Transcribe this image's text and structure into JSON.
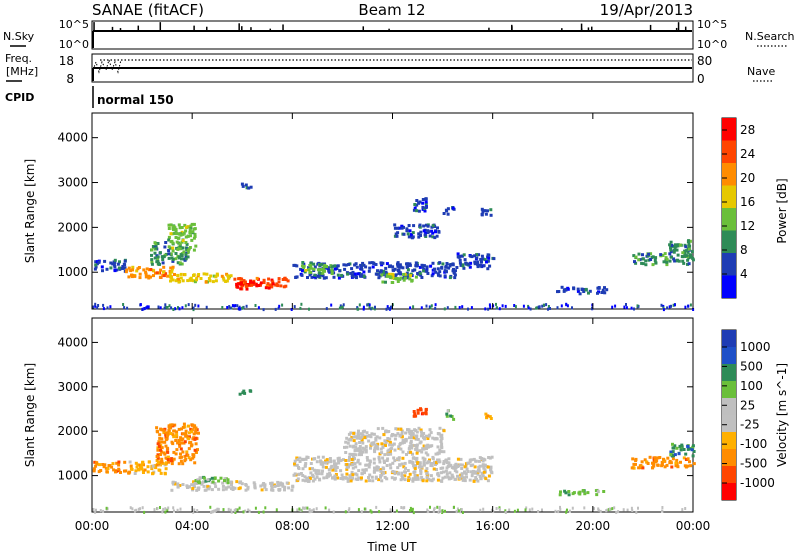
{
  "header": {
    "station": "SANAE (fitACF)",
    "beam": "Beam 12",
    "date": "19/Apr/2013"
  },
  "top_panels": {
    "nsky_label": "N.Sky",
    "nsky_ticks": [
      "10^5",
      "10^0"
    ],
    "nsearch_label": "N.Search",
    "nsearch_ticks": [
      "10^5",
      "10^0"
    ],
    "freq_label_1": "Freq.",
    "freq_label_2": "[MHz]",
    "freq_ticks": [
      "18",
      "8"
    ],
    "nave_label": "Nave",
    "nave_ticks": [
      "80",
      "0"
    ],
    "cpid_label": "CPID",
    "cpid_value": "normal 150"
  },
  "x_axis": {
    "label": "Time UT",
    "ticks": [
      "00:00",
      "04:00",
      "08:00",
      "12:00",
      "16:00",
      "20:00",
      "00:00"
    ]
  },
  "colors": {
    "power_scale": [
      "#0000ff",
      "#1e3cb4",
      "#2e8b57",
      "#6abf3a",
      "#e6c800",
      "#ff8c00",
      "#ff4500",
      "#ff0000"
    ],
    "velocity_scale": [
      "#ff0000",
      "#ff4500",
      "#ff8c00",
      "#ffb000",
      "#c0c0c0",
      "#bfbfbf",
      "#6abf3a",
      "#2e8b57",
      "#1e50c8",
      "#1e3cb4"
    ],
    "ground_scatter": "#b4b4b4"
  },
  "chart_data": [
    {
      "type": "heatmap",
      "panel": "power",
      "xlabel": "",
      "ylabel": "Slant Range [km]",
      "xlim_hours": [
        0,
        24
      ],
      "ylim": [
        180,
        4550
      ],
      "y_ticks": [
        "1000",
        "2000",
        "3000",
        "4000"
      ],
      "colorbar": {
        "label": "Power [dB]",
        "ticks": [
          "28",
          "24",
          "20",
          "16",
          "12",
          "8",
          "4"
        ],
        "range": [
          0,
          30
        ]
      },
      "regions": [
        {
          "t0": 0.0,
          "t1": 1.3,
          "r0": 1050,
          "r1": 1300,
          "level": 1
        },
        {
          "t0": 1.3,
          "t1": 3.2,
          "r0": 900,
          "r1": 1150,
          "level": 5
        },
        {
          "t0": 2.3,
          "t1": 3.8,
          "r0": 1200,
          "r1": 1700,
          "level": 2
        },
        {
          "t0": 3.0,
          "t1": 4.1,
          "r0": 1500,
          "r1": 2100,
          "level": 3
        },
        {
          "t0": 3.0,
          "t1": 5.5,
          "r0": 800,
          "r1": 1000,
          "level": 4
        },
        {
          "t0": 5.5,
          "t1": 7.8,
          "r0": 700,
          "r1": 900,
          "level": 6
        },
        {
          "t0": 5.7,
          "t1": 7.2,
          "r0": 650,
          "r1": 800,
          "level": 7
        },
        {
          "t0": 5.8,
          "t1": 6.3,
          "r0": 2900,
          "r1": 3000,
          "level": 1
        },
        {
          "t0": 8.0,
          "t1": 10.0,
          "r0": 900,
          "r1": 1250,
          "level": 1
        },
        {
          "t0": 8.3,
          "t1": 9.6,
          "r0": 1000,
          "r1": 1200,
          "level": 3
        },
        {
          "t0": 10.0,
          "t1": 14.5,
          "r0": 900,
          "r1": 1250,
          "level": 1
        },
        {
          "t0": 11.5,
          "t1": 13.0,
          "r0": 800,
          "r1": 1000,
          "level": 3
        },
        {
          "t0": 14.5,
          "t1": 16.0,
          "r0": 1100,
          "r1": 1450,
          "level": 1
        },
        {
          "t0": 12.8,
          "t1": 13.3,
          "r0": 2300,
          "r1": 2700,
          "level": 1
        },
        {
          "t0": 14.0,
          "t1": 14.4,
          "r0": 2300,
          "r1": 2500,
          "level": 1
        },
        {
          "t0": 15.5,
          "t1": 15.9,
          "r0": 2300,
          "r1": 2500,
          "level": 1
        },
        {
          "t0": 12.0,
          "t1": 13.8,
          "r0": 1800,
          "r1": 2100,
          "level": 1
        },
        {
          "t0": 18.5,
          "t1": 20.5,
          "r0": 550,
          "r1": 700,
          "level": 1
        },
        {
          "t0": 21.5,
          "t1": 24.0,
          "r0": 1200,
          "r1": 1450,
          "level": 2
        },
        {
          "t0": 23.0,
          "t1": 24.0,
          "r0": 1450,
          "r1": 1750,
          "level": 2
        }
      ]
    },
    {
      "type": "heatmap",
      "panel": "velocity",
      "xlabel": "Time UT",
      "ylabel": "Slant Range [km]",
      "xlim_hours": [
        0,
        24
      ],
      "ylim": [
        180,
        4550
      ],
      "y_ticks": [
        "1000",
        "2000",
        "3000",
        "4000"
      ],
      "colorbar": {
        "label": "Velocity [m s^-1]",
        "ticks": [
          "1000",
          "500",
          "100",
          "25",
          "-25",
          "-100",
          "-500",
          "-1000"
        ],
        "range": [
          -1000,
          1000
        ]
      },
      "regions": [
        {
          "t0": 0.0,
          "t1": 1.3,
          "r0": 1100,
          "r1": 1350,
          "color": 2
        },
        {
          "t0": 1.3,
          "t1": 3.0,
          "r0": 1050,
          "r1": 1350,
          "color": 3
        },
        {
          "t0": 2.5,
          "t1": 4.2,
          "r0": 1300,
          "r1": 2200,
          "color": 2
        },
        {
          "t0": 3.0,
          "t1": 8.0,
          "r0": 700,
          "r1": 900,
          "color": 4
        },
        {
          "t0": 4.0,
          "t1": 5.5,
          "r0": 850,
          "r1": 1000,
          "color": 6
        },
        {
          "t0": 5.8,
          "t1": 6.3,
          "r0": 2850,
          "r1": 2950,
          "color": 7
        },
        {
          "t0": 8.0,
          "t1": 16.0,
          "r0": 900,
          "r1": 1450,
          "color": 4
        },
        {
          "t0": 10.0,
          "t1": 14.0,
          "r0": 1500,
          "r1": 2100,
          "color": 4
        },
        {
          "t0": 12.8,
          "t1": 13.3,
          "r0": 2350,
          "r1": 2600,
          "color": 1
        },
        {
          "t0": 14.1,
          "t1": 14.4,
          "r0": 2300,
          "r1": 2500,
          "color": 6
        },
        {
          "t0": 15.6,
          "t1": 15.9,
          "r0": 2300,
          "r1": 2450,
          "color": 3
        },
        {
          "t0": 18.5,
          "t1": 20.5,
          "r0": 600,
          "r1": 700,
          "color": 6
        },
        {
          "t0": 21.5,
          "t1": 24.0,
          "r0": 1200,
          "r1": 1450,
          "color": 2
        },
        {
          "t0": 23.0,
          "t1": 24.0,
          "r0": 1450,
          "r1": 1750,
          "color": 7
        }
      ]
    }
  ]
}
